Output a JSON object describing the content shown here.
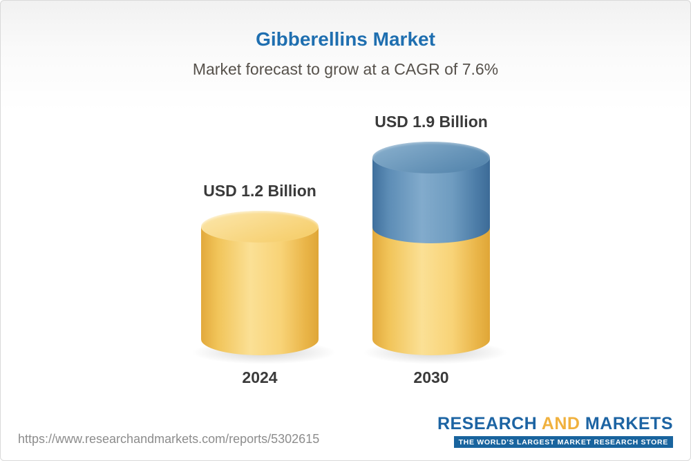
{
  "header": {
    "title": "Gibberellins Market",
    "subtitle": "Market forecast to grow at a CAGR of 7.6%"
  },
  "chart_data": {
    "type": "bar",
    "title": "Gibberellins Market",
    "subtitle": "Market forecast to grow at a CAGR of 7.6%",
    "categories": [
      "2024",
      "2030"
    ],
    "series": [
      {
        "name": "Market value (USD Billion)",
        "values": [
          1.2,
          1.9
        ]
      }
    ],
    "value_labels": [
      "USD 1.2 Billion",
      "USD 1.9 Billion"
    ],
    "unit": "USD Billion",
    "cagr_percent": 7.6,
    "legend": "off",
    "axes": "none",
    "ylim": [
      0,
      2.2
    ],
    "colors": {
      "bar_2024": "#f5ca62",
      "bar_2030_base": "#f5ca62",
      "bar_2030_growth": "#5d8fba",
      "title": "#1f6fb0"
    }
  },
  "footer": {
    "url": "https://www.researchandmarkets.com/reports/5302615",
    "logo": {
      "word1": "RESEARCH",
      "word2": "AND",
      "word3": "MARKETS",
      "tagline": "THE WORLD'S LARGEST MARKET RESEARCH STORE"
    }
  }
}
